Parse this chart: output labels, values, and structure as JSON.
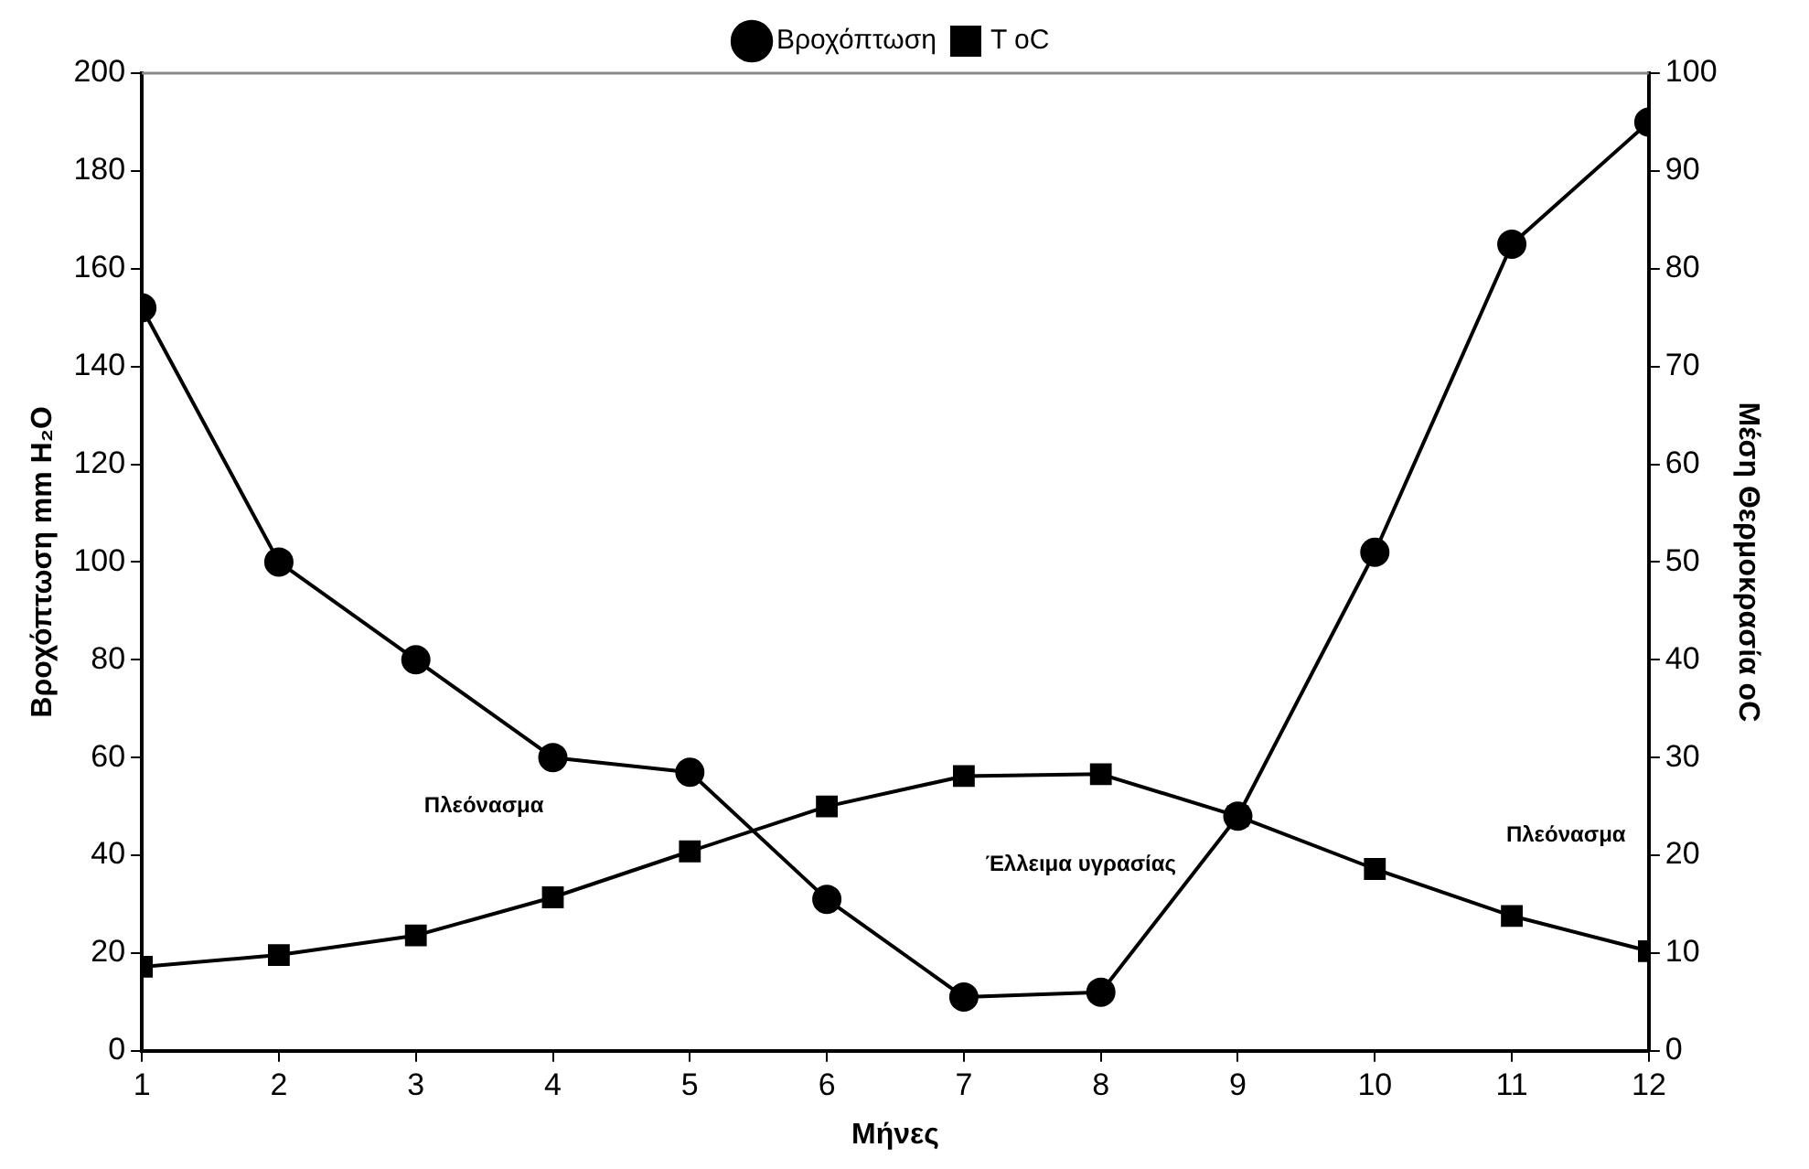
{
  "chart_data": {
    "type": "line",
    "xlabel": "Μήνες",
    "ylabel": "Βροχόπτωση mm H₂O",
    "y2label": "Μέση Θερμοκρασία oC",
    "x": [
      1,
      2,
      3,
      4,
      5,
      6,
      7,
      8,
      9,
      10,
      11,
      12
    ],
    "series": [
      {
        "name": "Βροχόπτωση",
        "color": "#000000",
        "marker": "circle",
        "values": [
          152,
          100,
          80,
          60,
          57,
          31,
          11,
          12,
          48,
          102,
          165,
          190
        ]
      },
      {
        "name": "T oC",
        "color": "#000000",
        "marker": "square",
        "axis": "y2",
        "values": [
          8.6,
          9.8,
          11.8,
          15.7,
          20.4,
          25.0,
          28.1,
          28.3,
          24.0,
          18.6,
          13.8,
          10.2
        ]
      }
    ],
    "xlim": [
      1,
      12
    ],
    "xticks": [
      1,
      2,
      3,
      4,
      5,
      6,
      7,
      8,
      9,
      10,
      11,
      12
    ],
    "ylim": [
      0,
      200
    ],
    "yticks": [
      0,
      20,
      40,
      60,
      80,
      100,
      120,
      140,
      160,
      180,
      200
    ],
    "y2lim": [
      0,
      100
    ],
    "y2ticks": [
      0,
      10,
      20,
      30,
      40,
      50,
      60,
      70,
      80,
      90,
      100
    ],
    "annotations": [
      "Πλεόνασμα",
      "Έλλειμα υγρασίας",
      "Πλεόνασμα"
    ],
    "grid": false,
    "legend": "top",
    "line_style": "solid"
  }
}
